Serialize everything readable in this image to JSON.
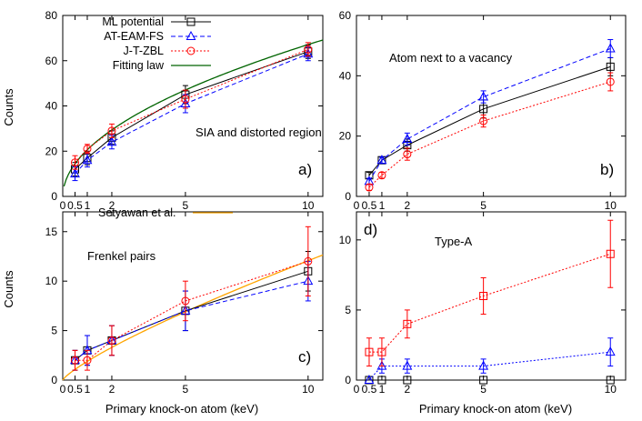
{
  "figure": {
    "xlabel": "Primary knock-on atom (keV)",
    "ylabel": "Counts"
  },
  "colors": {
    "ml": "#000000",
    "ateam": "#0000ff",
    "jtzbl": "#ff0000",
    "fit": "#006400",
    "setyawan": "#ffa500",
    "typeA_red": "#ff0000",
    "typeA_blue": "#0000ff"
  },
  "chart_data": [
    {
      "panel_label": "a)",
      "type": "line",
      "annotation": "SIA and distorted region",
      "xlim": [
        0,
        10.6
      ],
      "ylim": [
        0,
        80
      ],
      "xticks": [
        0,
        0.5,
        1,
        2,
        5,
        10
      ],
      "yticks": [
        0,
        20,
        40,
        60,
        80
      ],
      "legend": {
        "placement": "top-left"
      },
      "series": [
        {
          "name": "ML potential",
          "key": "ml",
          "marker": "square",
          "dash": "solid",
          "x": [
            0.5,
            1,
            2,
            5,
            10
          ],
          "y": [
            12,
            17,
            26,
            45,
            64
          ],
          "err": [
            3,
            3,
            3,
            4,
            3
          ]
        },
        {
          "name": "AT-EAM-FS",
          "key": "ateam",
          "marker": "triangle",
          "dash": "dashed",
          "x": [
            0.5,
            1,
            2,
            5,
            10
          ],
          "y": [
            10,
            16,
            24,
            41,
            63
          ],
          "err": [
            3,
            3,
            3,
            4,
            3
          ]
        },
        {
          "name": "J-T-ZBL",
          "key": "jtzbl",
          "marker": "circle",
          "dash": "dotted",
          "x": [
            0.5,
            1,
            2,
            5,
            10
          ],
          "y": [
            15,
            21,
            29,
            43,
            65
          ],
          "err": [
            3,
            2,
            3,
            4,
            3
          ]
        }
      ],
      "curves": [
        {
          "name": "Fitting law",
          "key": "fit",
          "coef": 20.6,
          "exp": 0.513,
          "x_range": [
            0.05,
            10.6
          ]
        }
      ]
    },
    {
      "panel_label": "b)",
      "type": "line",
      "annotation": "Atom next to a vacancy",
      "xlim": [
        0,
        10.6
      ],
      "ylim": [
        0,
        60
      ],
      "xticks": [
        0,
        0.5,
        1,
        2,
        5,
        10
      ],
      "yticks": [
        0,
        20,
        40,
        60
      ],
      "series": [
        {
          "key": "ml",
          "marker": "square",
          "dash": "solid",
          "x": [
            0.5,
            1,
            2,
            5,
            10
          ],
          "y": [
            7,
            12,
            17,
            29,
            43
          ],
          "err": [
            1,
            1,
            2,
            3,
            3
          ]
        },
        {
          "key": "ateam",
          "marker": "triangle",
          "dash": "dashed",
          "x": [
            0.5,
            1,
            2,
            5,
            10
          ],
          "y": [
            5,
            12,
            19,
            33,
            49
          ],
          "err": [
            1,
            1,
            2,
            2,
            3
          ]
        },
        {
          "key": "jtzbl",
          "marker": "circle",
          "dash": "dotted",
          "x": [
            0.5,
            1,
            2,
            5,
            10
          ],
          "y": [
            3,
            7,
            14,
            25,
            38
          ],
          "err": [
            1,
            1,
            2,
            2,
            3
          ]
        }
      ]
    },
    {
      "panel_label": "c)",
      "type": "line",
      "annotation": "Frenkel pairs",
      "xlim": [
        0,
        10.6
      ],
      "ylim": [
        0,
        17
      ],
      "xticks": [
        0,
        0.5,
        1,
        2,
        5,
        10
      ],
      "yticks": [
        0,
        5,
        10,
        15
      ],
      "legend": {
        "placement": "top-left"
      },
      "series": [
        {
          "key": "ml",
          "marker": "square",
          "dash": "solid",
          "x": [
            0.5,
            1,
            2,
            5,
            10
          ],
          "y": [
            2,
            3,
            4,
            7,
            11
          ],
          "err": [
            1,
            1.5,
            1.5,
            2,
            2
          ]
        },
        {
          "key": "ateam",
          "marker": "triangle",
          "dash": "dashed",
          "x": [
            0.5,
            1,
            2,
            5,
            10
          ],
          "y": [
            2,
            3,
            4,
            7,
            10
          ],
          "err": [
            1,
            1.5,
            1.5,
            2,
            2
          ]
        },
        {
          "key": "jtzbl",
          "marker": "circle",
          "dash": "dotted",
          "x": [
            0.5,
            1,
            2,
            5,
            10
          ],
          "y": [
            2,
            2,
            4,
            8,
            12
          ],
          "err": [
            1,
            1,
            1.5,
            2,
            3.5
          ]
        }
      ],
      "curves": [
        {
          "name": "Setyawan et al.",
          "key": "setyawan",
          "coef": 1.89,
          "exp": 0.805,
          "x_range": [
            0,
            10.6
          ]
        }
      ]
    },
    {
      "panel_label": "d)",
      "label_position": "top-left",
      "type": "line",
      "annotation": "Type-A",
      "xlim": [
        0,
        10.6
      ],
      "ylim": [
        0,
        12
      ],
      "xticks": [
        0,
        0.5,
        1,
        2,
        5,
        10
      ],
      "yticks": [
        0,
        5,
        10
      ],
      "series": [
        {
          "key": "ml",
          "marker": "square",
          "dash": "solid",
          "lines": false,
          "x": [
            0.5,
            1,
            2,
            5,
            10
          ],
          "y": [
            0,
            0,
            0,
            0,
            0
          ],
          "err": [
            0,
            0,
            0,
            0,
            0
          ]
        },
        {
          "key": "typeA_blue",
          "marker": "triangle",
          "dash": "dotted",
          "x": [
            0.5,
            1,
            2,
            5,
            10
          ],
          "y": [
            0,
            1,
            1,
            1,
            2
          ],
          "err": [
            0,
            0.5,
            0.5,
            0.5,
            1
          ]
        },
        {
          "key": "typeA_red",
          "marker": "square",
          "dash": "dotted",
          "x": [
            0.5,
            1,
            2,
            5,
            10
          ],
          "y": [
            2,
            2,
            4,
            6,
            9
          ],
          "err": [
            1,
            1,
            1,
            1.3,
            2.4
          ]
        }
      ]
    }
  ]
}
